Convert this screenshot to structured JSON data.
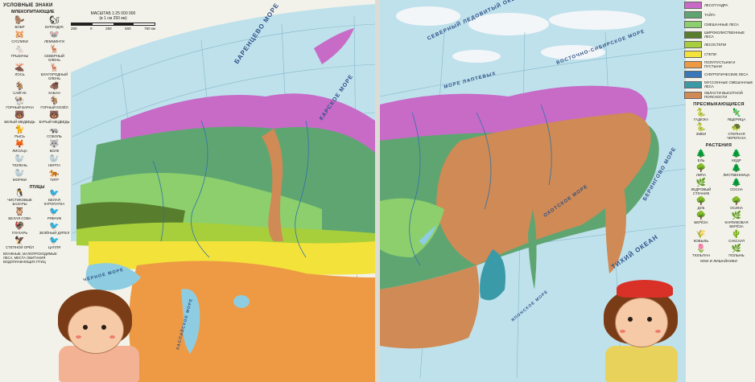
{
  "colors": {
    "ocean": "#bfe1ec",
    "ocean_deep": "#8ecde1",
    "tundra_forest": "#c76bc7",
    "taiga": "#5fa572",
    "mixed_forest": "#8ccf6c",
    "broadleaf_forest": "#587d2d",
    "forest_steppe": "#a7cf3c",
    "steppe": "#f2e23a",
    "semi_desert": "#ee9a45",
    "subtropical_forest": "#3a77b8",
    "monsoon_forest": "#3b9aa8",
    "highland": "#cf8a55",
    "ice": "#f3f6f8"
  },
  "left_page": {
    "legend_title": "УСЛОВНЫЕ ЗНАКИ",
    "mammals_title": "МЛЕКОПИТАЮЩИЕ",
    "mammals": [
      {
        "icon": "beaver-icon",
        "label": "БОБР"
      },
      {
        "icon": "chipmunk-icon",
        "label": "БУРУНДУК"
      },
      {
        "icon": "gopher-icon",
        "label": "СУСЛИКИ"
      },
      {
        "icon": "lemming-icon",
        "label": "ЛЕММИНГИ"
      },
      {
        "icon": "vole-icon",
        "label": "ГРЫЗУНЫ"
      },
      {
        "icon": "reindeer-icon",
        "label": "СЕВЕРНЫЙ ОЛЕНЬ"
      },
      {
        "icon": "elk-icon",
        "label": "ЛОСЬ"
      },
      {
        "icon": "deer-icon",
        "label": "БЛАГОРОДНЫЙ ОЛЕНЬ"
      },
      {
        "icon": "saiga-icon",
        "label": "САЙГАК"
      },
      {
        "icon": "boar-icon",
        "label": "КАБАН"
      },
      {
        "icon": "mountain-ram-icon",
        "label": "ГОРНЫЙ БАРАН"
      },
      {
        "icon": "mountain-goat-icon",
        "label": "ГОРНЫЙ КОЗЁЛ"
      },
      {
        "icon": "polar-bear-icon",
        "label": "БЕЛЫЙ МЕДВЕДЬ"
      },
      {
        "icon": "brown-bear-icon",
        "label": "БУРЫЙ МЕДВЕДЬ"
      },
      {
        "icon": "lynx-icon",
        "label": "РЫСЬ"
      },
      {
        "icon": "sable-icon",
        "label": "СОБОЛЬ"
      },
      {
        "icon": "fox-icon",
        "label": "ЛИСИЦА"
      },
      {
        "icon": "wolf-icon",
        "label": "ВОЛК"
      },
      {
        "icon": "seal-icon",
        "label": "ТЮЛЕНЬ"
      },
      {
        "icon": "seal2-icon",
        "label": "НЕРПА"
      },
      {
        "icon": "walrus-icon",
        "label": "МОРЖИ"
      },
      {
        "icon": "tiger-icon",
        "label": "ТИГР"
      }
    ],
    "birds_title": "ПТИЦЫ",
    "birds": [
      {
        "icon": "auk-icon",
        "label": "ЧИСТИКОВЫЕ БАЗАРЫ"
      },
      {
        "icon": "partridge-icon",
        "label": "БЕЛАЯ КУРОПАТКА"
      },
      {
        "icon": "owl-icon",
        "label": "БЕЛАЯ СОВА"
      },
      {
        "icon": "grouse-icon",
        "label": "РЯБЧИК"
      },
      {
        "icon": "capercaillie-icon",
        "label": "ГЛУХАРЬ"
      },
      {
        "icon": "woodpecker-icon",
        "label": "ЗЕЛЁНЫЙ ДЯТЕЛ"
      },
      {
        "icon": "eagle-icon",
        "label": "СТЕПНОЙ ОРЁЛ"
      },
      {
        "icon": "heron-icon",
        "label": "ЦАПЛЯ"
      }
    ],
    "bird_note": "ВЛАЖНЫЕ, МАЛОПРОХОДИМЫЕ ЛЕСА, МЕСТА ОБИТАНИЯ ВОДОПЛАВАЮЩИХ ПТИЦ",
    "scale_title": "МАСШТАБ 1:25 000 000",
    "scale_sub": "(в 1 см 250 км)",
    "scale_ticks": [
      "250",
      "0",
      "250",
      "500",
      "750 км"
    ],
    "sea_labels": {
      "barents": "БАРЕНЦЕВО МОРЕ",
      "kara": "КАРСКОЕ МОРЕ",
      "black": "ЧЁРНОЕ МОРЕ",
      "caspian": "КАСПИЙСКОЕ МОРЕ"
    }
  },
  "right_page": {
    "zones": [
      {
        "color": "#c76bc7",
        "label": "ЛЕСОТУНДРА"
      },
      {
        "color": "#5fa572",
        "label": "ТАЙГА"
      },
      {
        "color": "#8ccf6c",
        "label": "СМЕШАННЫЕ ЛЕСА"
      },
      {
        "color": "#587d2d",
        "label": "ШИРОКОЛИСТВЕННЫЕ ЛЕСА"
      },
      {
        "color": "#a7cf3c",
        "label": "ЛЕСОСТЕПИ"
      },
      {
        "color": "#f2e23a",
        "label": "СТЕПИ"
      },
      {
        "color": "#ee9a45",
        "label": "ПОЛУПУСТЫНИ И ПУСТЫНИ"
      },
      {
        "color": "#3a77b8",
        "label": "СУБТРОПИЧЕСКИЕ ЛЕСА"
      },
      {
        "color": "#3b9aa8",
        "label": "МУССОННЫЕ СМЕШАННЫЕ ЛЕСА"
      },
      {
        "color": "#cf8a55",
        "label": "ОБЛАСТИ ВЫСОТНОЙ ПОЯСНОСТИ"
      }
    ],
    "reptiles_title": "ПРЕСМЫКАЮЩИЕСЯ",
    "reptiles": [
      {
        "icon": "viper-icon",
        "label": "ГАДЮКА"
      },
      {
        "icon": "lizard-icon",
        "label": "ЯЩЕРИЦА"
      },
      {
        "icon": "snake-icon",
        "label": "ЗМЕИ"
      },
      {
        "icon": "turtle-icon",
        "label": "СТЕПНАЯ ЧЕРЕПАХА"
      }
    ],
    "plants_title": "РАСТЕНИЯ",
    "plants": [
      {
        "icon": "spruce-icon",
        "label": "ЕЛЬ"
      },
      {
        "icon": "cedar-icon",
        "label": "КЕДР"
      },
      {
        "icon": "linden-icon",
        "label": "ЛИПА"
      },
      {
        "icon": "larch-icon",
        "label": "ЛИСТВЕННИЦА"
      },
      {
        "icon": "cedar-elfin-icon",
        "label": "КЕДРОВЫЙ СТЛАНИК"
      },
      {
        "icon": "pine-icon",
        "label": "СОСНА"
      },
      {
        "icon": "oak-icon",
        "label": "ДУБ"
      },
      {
        "icon": "aspen-icon",
        "label": "ОСИНА"
      },
      {
        "icon": "birch-icon",
        "label": "БЕРЁЗА"
      },
      {
        "icon": "dwarf-birch-icon",
        "label": "КАРЛИКОВАЯ БЕРЁЗА"
      },
      {
        "icon": "grass-icon",
        "label": "КОВЫЛЬ"
      },
      {
        "icon": "saxaul-icon",
        "label": "САКСАУЛ"
      },
      {
        "icon": "tulip-icon",
        "label": "ТЮЛЬПАН"
      },
      {
        "icon": "wormwood-icon",
        "label": "ПОЛЫНЬ"
      }
    ],
    "plants_note": "МХИ И ЛИШАЙНИКИ",
    "sea_labels": {
      "laptev": "МОРЕ ЛАПТЕВЫХ",
      "east_siberian": "ВОСТОЧНО-СИБИРСКОЕ МОРЕ",
      "bering": "БЕРИНГОВО МОРЕ",
      "okhotsk": "ОХОТСКОЕ МОРЕ",
      "pacific": "ТИХИЙ ОКЕАН",
      "arctic": "СЕВЕРНЫЙ ЛЕДОВИТЫЙ ОКЕАН",
      "japan": "ЯПОНСКОЕ МОРЕ"
    }
  }
}
